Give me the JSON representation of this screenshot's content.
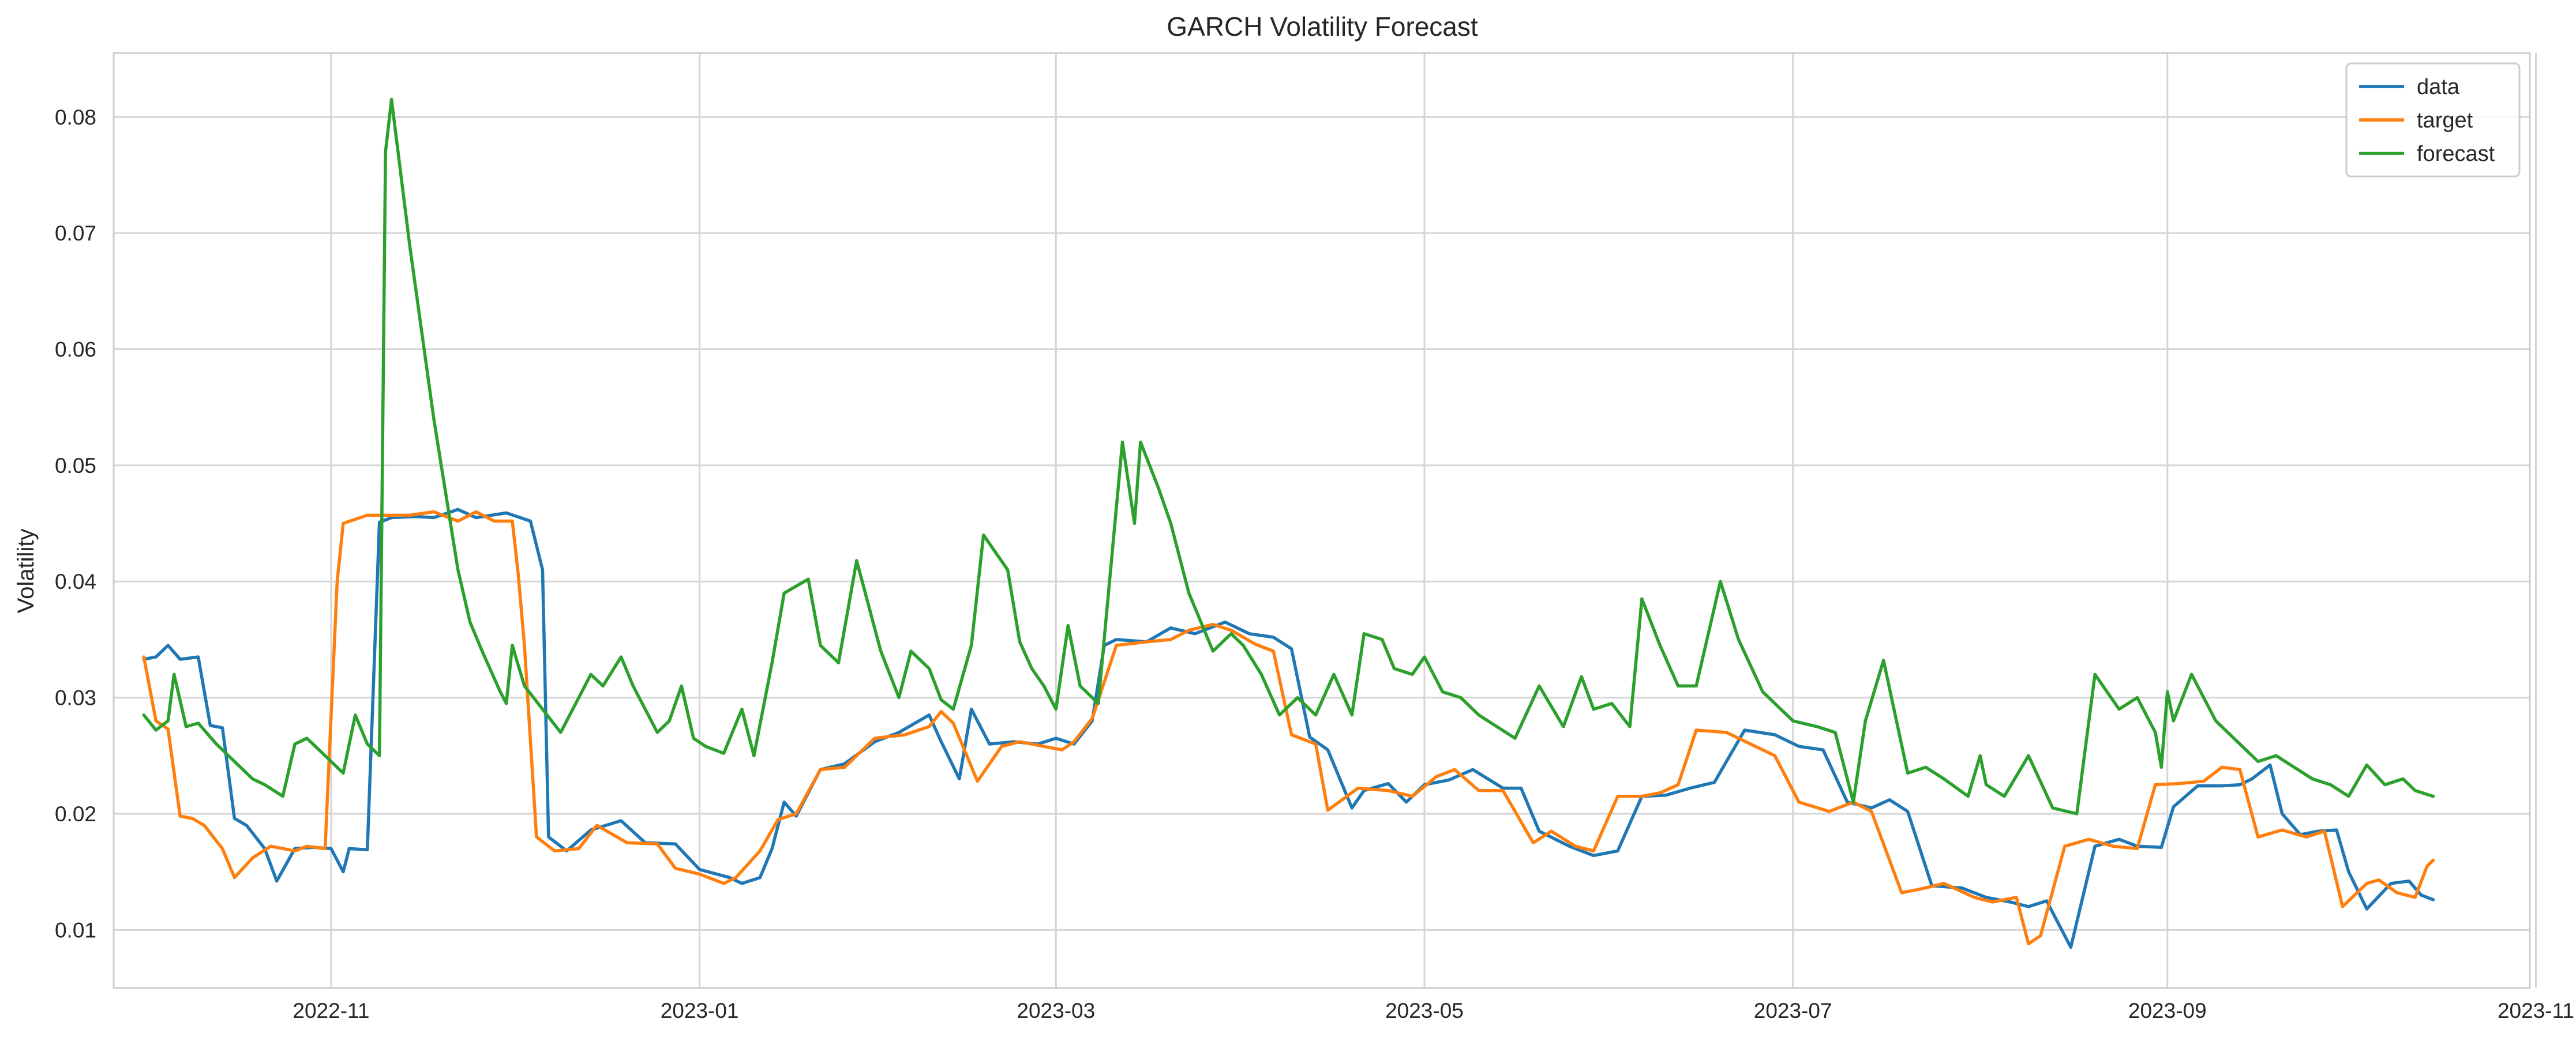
{
  "chart_data": {
    "type": "line",
    "title": "GARCH Volatility Forecast",
    "xlabel": "",
    "ylabel": "Volatility",
    "xlim": [
      "2022-09-26",
      "2023-10-31"
    ],
    "ylim": [
      0.005,
      0.0855
    ],
    "grid": true,
    "legend_position": "top-right",
    "x_ticks": [
      "2022-11",
      "2023-01",
      "2023-03",
      "2023-05",
      "2023-07",
      "2023-09",
      "2023-11"
    ],
    "y_ticks": [
      "0.01",
      "0.02",
      "0.03",
      "0.04",
      "0.05",
      "0.06",
      "0.07",
      "0.08"
    ],
    "series": [
      {
        "name": "data",
        "color": "#1f77b4",
        "x": [
          "2022-10-01",
          "2022-10-03",
          "2022-10-05",
          "2022-10-07",
          "2022-10-10",
          "2022-10-12",
          "2022-10-14",
          "2022-10-16",
          "2022-10-18",
          "2022-10-21",
          "2022-10-23",
          "2022-10-26",
          "2022-10-29",
          "2022-11-01",
          "2022-11-03",
          "2022-11-04",
          "2022-11-07",
          "2022-11-09",
          "2022-11-11",
          "2022-11-15",
          "2022-11-18",
          "2022-11-22",
          "2022-11-25",
          "2022-11-30",
          "2022-12-04",
          "2022-12-06",
          "2022-12-07",
          "2022-12-10",
          "2022-12-14",
          "2022-12-19",
          "2022-12-23",
          "2022-12-28",
          "2023-01-01",
          "2023-01-06",
          "2023-01-08",
          "2023-01-11",
          "2023-01-13",
          "2023-01-15",
          "2023-01-17",
          "2023-01-21",
          "2023-01-25",
          "2023-01-30",
          "2023-02-03",
          "2023-02-08",
          "2023-02-10",
          "2023-02-13",
          "2023-02-15",
          "2023-02-18",
          "2023-02-22",
          "2023-02-26",
          "2023-03-01",
          "2023-03-04",
          "2023-03-07",
          "2023-03-09",
          "2023-03-11",
          "2023-03-16",
          "2023-03-20",
          "2023-03-24",
          "2023-03-29",
          "2023-04-02",
          "2023-04-06",
          "2023-04-09",
          "2023-04-12",
          "2023-04-15",
          "2023-04-19",
          "2023-04-21",
          "2023-04-25",
          "2023-04-28",
          "2023-05-01",
          "2023-05-05",
          "2023-05-09",
          "2023-05-14",
          "2023-05-17",
          "2023-05-20",
          "2023-05-25",
          "2023-05-29",
          "2023-06-02",
          "2023-06-06",
          "2023-06-10",
          "2023-06-14",
          "2023-06-18",
          "2023-06-23",
          "2023-06-28",
          "2023-07-02",
          "2023-07-06",
          "2023-07-10",
          "2023-07-14",
          "2023-07-17",
          "2023-07-20",
          "2023-07-24",
          "2023-07-29",
          "2023-08-02",
          "2023-08-06",
          "2023-08-09",
          "2023-08-12",
          "2023-08-16",
          "2023-08-20",
          "2023-08-24",
          "2023-08-27",
          "2023-08-31",
          "2023-09-02",
          "2023-09-06",
          "2023-09-10",
          "2023-09-13",
          "2023-09-15",
          "2023-09-18",
          "2023-09-20",
          "2023-09-23",
          "2023-09-26",
          "2023-09-29",
          "2023-10-01",
          "2023-10-04",
          "2023-10-08",
          "2023-10-11",
          "2023-10-13",
          "2023-10-15"
        ],
        "y": [
          0.0333,
          0.0335,
          0.0345,
          0.0333,
          0.0335,
          0.0276,
          0.0274,
          0.0196,
          0.019,
          0.017,
          0.0142,
          0.017,
          0.0171,
          0.017,
          0.015,
          0.017,
          0.0169,
          0.0451,
          0.0455,
          0.0456,
          0.0455,
          0.0462,
          0.0455,
          0.0459,
          0.0452,
          0.041,
          0.018,
          0.0168,
          0.0186,
          0.0194,
          0.0175,
          0.0174,
          0.0152,
          0.0145,
          0.014,
          0.0145,
          0.017,
          0.021,
          0.0198,
          0.0238,
          0.0243,
          0.0262,
          0.027,
          0.0285,
          0.0262,
          0.023,
          0.029,
          0.026,
          0.0262,
          0.026,
          0.0265,
          0.026,
          0.028,
          0.0345,
          0.035,
          0.0348,
          0.036,
          0.0355,
          0.0365,
          0.0355,
          0.0352,
          0.0342,
          0.0266,
          0.0255,
          0.0205,
          0.022,
          0.0226,
          0.021,
          0.0225,
          0.0229,
          0.0238,
          0.0222,
          0.0222,
          0.0185,
          0.0172,
          0.0164,
          0.0168,
          0.0215,
          0.0216,
          0.0222,
          0.0227,
          0.0272,
          0.0268,
          0.0258,
          0.0255,
          0.021,
          0.0205,
          0.0212,
          0.0202,
          0.0138,
          0.0136,
          0.0128,
          0.0124,
          0.012,
          0.0125,
          0.0085,
          0.0172,
          0.0178,
          0.0172,
          0.0171,
          0.0206,
          0.0224,
          0.0224,
          0.0225,
          0.023,
          0.0242,
          0.02,
          0.0182,
          0.0185,
          0.0186,
          0.015,
          0.0118,
          0.014,
          0.0142,
          0.013,
          0.0126
        ]
      },
      {
        "name": "target",
        "color": "#ff7f0e",
        "x": [
          "2022-10-01",
          "2022-10-03",
          "2022-10-05",
          "2022-10-07",
          "2022-10-09",
          "2022-10-11",
          "2022-10-14",
          "2022-10-16",
          "2022-10-19",
          "2022-10-22",
          "2022-10-26",
          "2022-10-28",
          "2022-10-31",
          "2022-11-02",
          "2022-11-03",
          "2022-11-07",
          "2022-11-11",
          "2022-11-14",
          "2022-11-18",
          "2022-11-22",
          "2022-11-25",
          "2022-11-28",
          "2022-12-01",
          "2022-12-02",
          "2022-12-03",
          "2022-12-05",
          "2022-12-08",
          "2022-12-12",
          "2022-12-15",
          "2022-12-20",
          "2022-12-25",
          "2022-12-28",
          "2023-01-01",
          "2023-01-05",
          "2023-01-07",
          "2023-01-11",
          "2023-01-14",
          "2023-01-17",
          "2023-01-21",
          "2023-01-25",
          "2023-01-30",
          "2023-02-04",
          "2023-02-08",
          "2023-02-10",
          "2023-02-12",
          "2023-02-16",
          "2023-02-20",
          "2023-02-23",
          "2023-02-27",
          "2023-03-02",
          "2023-03-04",
          "2023-03-07",
          "2023-03-11",
          "2023-03-16",
          "2023-03-20",
          "2023-03-23",
          "2023-03-27",
          "2023-03-30",
          "2023-04-03",
          "2023-04-06",
          "2023-04-09",
          "2023-04-13",
          "2023-04-15",
          "2023-04-20",
          "2023-04-25",
          "2023-04-29",
          "2023-05-03",
          "2023-05-06",
          "2023-05-10",
          "2023-05-14",
          "2023-05-19",
          "2023-05-22",
          "2023-05-26",
          "2023-05-29",
          "2023-06-02",
          "2023-06-06",
          "2023-06-09",
          "2023-06-12",
          "2023-06-15",
          "2023-06-20",
          "2023-06-24",
          "2023-06-28",
          "2023-07-02",
          "2023-07-07",
          "2023-07-11",
          "2023-07-14",
          "2023-07-19",
          "2023-07-22",
          "2023-07-26",
          "2023-07-31",
          "2023-08-03",
          "2023-08-07",
          "2023-08-09",
          "2023-08-11",
          "2023-08-15",
          "2023-08-19",
          "2023-08-23",
          "2023-08-27",
          "2023-08-30",
          "2023-09-03",
          "2023-09-07",
          "2023-09-10",
          "2023-09-13",
          "2023-09-16",
          "2023-09-20",
          "2023-09-24",
          "2023-09-27",
          "2023-09-30",
          "2023-10-04",
          "2023-10-06",
          "2023-10-09",
          "2023-10-12",
          "2023-10-14",
          "2023-10-15"
        ],
        "y": [
          0.0335,
          0.028,
          0.0273,
          0.0198,
          0.0196,
          0.019,
          0.017,
          0.0145,
          0.0162,
          0.0172,
          0.0168,
          0.0172,
          0.017,
          0.04,
          0.045,
          0.0457,
          0.0457,
          0.0457,
          0.046,
          0.0452,
          0.046,
          0.0452,
          0.0452,
          0.0405,
          0.0345,
          0.018,
          0.0168,
          0.017,
          0.019,
          0.0175,
          0.0174,
          0.0153,
          0.0148,
          0.014,
          0.0145,
          0.0168,
          0.0195,
          0.02,
          0.0238,
          0.024,
          0.0265,
          0.0268,
          0.0275,
          0.0288,
          0.0278,
          0.0228,
          0.0258,
          0.0262,
          0.0258,
          0.0255,
          0.0262,
          0.0282,
          0.0345,
          0.0348,
          0.035,
          0.0358,
          0.0363,
          0.0358,
          0.0346,
          0.034,
          0.0268,
          0.026,
          0.0203,
          0.0222,
          0.022,
          0.0215,
          0.0232,
          0.0238,
          0.022,
          0.022,
          0.0175,
          0.0185,
          0.0172,
          0.0168,
          0.0215,
          0.0215,
          0.0218,
          0.0225,
          0.0272,
          0.027,
          0.026,
          0.025,
          0.021,
          0.0202,
          0.021,
          0.0202,
          0.0132,
          0.0135,
          0.014,
          0.0128,
          0.0124,
          0.0128,
          0.0088,
          0.0095,
          0.0172,
          0.0178,
          0.0172,
          0.017,
          0.0225,
          0.0226,
          0.0228,
          0.024,
          0.0238,
          0.018,
          0.0186,
          0.018,
          0.0185,
          0.012,
          0.014,
          0.0143,
          0.0132,
          0.0128,
          0.0155,
          0.016
        ]
      },
      {
        "name": "forecast",
        "color": "#2ca02c",
        "x": [
          "2022-10-01",
          "2022-10-03",
          "2022-10-05",
          "2022-10-06",
          "2022-10-08",
          "2022-10-10",
          "2022-10-13",
          "2022-10-16",
          "2022-10-19",
          "2022-10-21",
          "2022-10-24",
          "2022-10-26",
          "2022-10-28",
          "2022-10-31",
          "2022-11-03",
          "2022-11-05",
          "2022-11-07",
          "2022-11-09",
          "2022-11-10",
          "2022-11-11",
          "2022-11-14",
          "2022-11-18",
          "2022-11-22",
          "2022-11-24",
          "2022-11-26",
          "2022-11-29",
          "2022-11-30",
          "2022-12-01",
          "2022-12-03",
          "2022-12-06",
          "2022-12-09",
          "2022-12-12",
          "2022-12-14",
          "2022-12-16",
          "2022-12-19",
          "2022-12-21",
          "2022-12-23",
          "2022-12-25",
          "2022-12-27",
          "2022-12-29",
          "2022-12-31",
          "2023-01-02",
          "2023-01-05",
          "2023-01-08",
          "2023-01-10",
          "2023-01-13",
          "2023-01-15",
          "2023-01-19",
          "2023-01-21",
          "2023-01-24",
          "2023-01-27",
          "2023-01-31",
          "2023-02-03",
          "2023-02-05",
          "2023-02-08",
          "2023-02-10",
          "2023-02-12",
          "2023-02-15",
          "2023-02-17",
          "2023-02-21",
          "2023-02-23",
          "2023-02-25",
          "2023-02-27",
          "2023-03-01",
          "2023-03-03",
          "2023-03-05",
          "2023-03-08",
          "2023-03-12",
          "2023-03-14",
          "2023-03-15",
          "2023-03-18",
          "2023-03-20",
          "2023-03-23",
          "2023-03-27",
          "2023-03-30",
          "2023-04-01",
          "2023-04-04",
          "2023-04-07",
          "2023-04-10",
          "2023-04-13",
          "2023-04-16",
          "2023-04-19",
          "2023-04-21",
          "2023-04-24",
          "2023-04-26",
          "2023-04-29",
          "2023-05-01",
          "2023-05-04",
          "2023-05-07",
          "2023-05-10",
          "2023-05-13",
          "2023-05-16",
          "2023-05-20",
          "2023-05-24",
          "2023-05-27",
          "2023-05-29",
          "2023-06-01",
          "2023-06-04",
          "2023-06-06",
          "2023-06-09",
          "2023-06-12",
          "2023-06-15",
          "2023-06-19",
          "2023-06-22",
          "2023-06-26",
          "2023-07-01",
          "2023-07-05",
          "2023-07-08",
          "2023-07-11",
          "2023-07-13",
          "2023-07-16",
          "2023-07-20",
          "2023-07-23",
          "2023-07-26",
          "2023-07-30",
          "2023-08-01",
          "2023-08-02",
          "2023-08-05",
          "2023-08-09",
          "2023-08-13",
          "2023-08-17",
          "2023-08-20",
          "2023-08-24",
          "2023-08-27",
          "2023-08-30",
          "2023-08-31",
          "2023-09-01",
          "2023-09-02",
          "2023-09-05",
          "2023-09-09",
          "2023-09-13",
          "2023-09-16",
          "2023-09-19",
          "2023-09-22",
          "2023-09-25",
          "2023-09-28",
          "2023-10-01",
          "2023-10-04",
          "2023-10-07",
          "2023-10-10",
          "2023-10-12",
          "2023-10-15"
        ],
        "y": [
          0.0285,
          0.0272,
          0.028,
          0.032,
          0.0275,
          0.0278,
          0.026,
          0.0245,
          0.023,
          0.0225,
          0.0215,
          0.026,
          0.0265,
          0.025,
          0.0235,
          0.0285,
          0.026,
          0.025,
          0.077,
          0.0815,
          0.069,
          0.054,
          0.041,
          0.0365,
          0.034,
          0.0305,
          0.0295,
          0.0345,
          0.031,
          0.029,
          0.027,
          0.03,
          0.032,
          0.031,
          0.0335,
          0.031,
          0.029,
          0.027,
          0.028,
          0.031,
          0.0265,
          0.0258,
          0.0252,
          0.029,
          0.025,
          0.033,
          0.039,
          0.0402,
          0.0345,
          0.033,
          0.0418,
          0.034,
          0.03,
          0.034,
          0.0325,
          0.0298,
          0.029,
          0.0345,
          0.044,
          0.041,
          0.0348,
          0.0325,
          0.031,
          0.029,
          0.0362,
          0.031,
          0.0295,
          0.052,
          0.045,
          0.052,
          0.048,
          0.045,
          0.039,
          0.034,
          0.0355,
          0.0345,
          0.032,
          0.0285,
          0.03,
          0.0285,
          0.032,
          0.0285,
          0.0355,
          0.035,
          0.0325,
          0.032,
          0.0335,
          0.0305,
          0.03,
          0.0285,
          0.0275,
          0.0265,
          0.031,
          0.0275,
          0.0318,
          0.029,
          0.0295,
          0.0275,
          0.0385,
          0.0345,
          0.031,
          0.031,
          0.04,
          0.035,
          0.0305,
          0.028,
          0.0275,
          0.027,
          0.021,
          0.028,
          0.0332,
          0.0235,
          0.024,
          0.023,
          0.0215,
          0.025,
          0.0225,
          0.0215,
          0.025,
          0.0205,
          0.02,
          0.032,
          0.029,
          0.03,
          0.027,
          0.024,
          0.0305,
          0.028,
          0.032,
          0.028,
          0.026,
          0.0245,
          0.025,
          0.024,
          0.023,
          0.0225,
          0.0215,
          0.0242,
          0.0225,
          0.023,
          0.022,
          0.0215
        ]
      }
    ]
  }
}
